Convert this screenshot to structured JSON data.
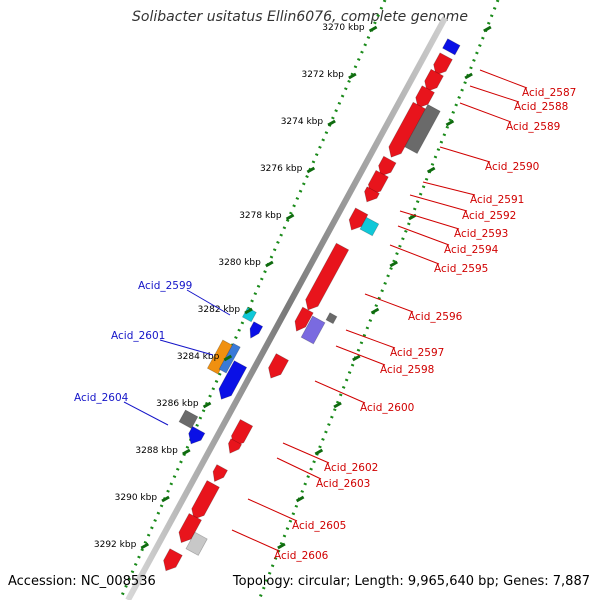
{
  "title": "Solibacter usitatus Ellin6076, complete genome",
  "accession": "Accession: NC_008536",
  "summary": "Topology: circular; Length: 9,965,640 bp; Genes: 7,887",
  "colors": {
    "forward_gene": "#e8141c",
    "forward_gene_dark": "#a00000",
    "reverse_gene": "#0a10e6",
    "backbone": "#8a8a8a",
    "gc_dots": "#1a8a1a",
    "gc_ticks": "#0f6b0f",
    "label_forward": "#d00000",
    "label_reverse": "#1414c8",
    "cyan_gene": "#10c8d8",
    "grey_gene": "#6a6a6a",
    "orange_gene": "#f09010",
    "purple_gene": "#7a6ae0"
  },
  "scale": {
    "unit": "kbp",
    "ticks": [
      {
        "label": "3270 kbp",
        "kbp": 3270
      },
      {
        "label": "3272 kbp",
        "kbp": 3272
      },
      {
        "label": "3274 kbp",
        "kbp": 3274
      },
      {
        "label": "3276 kbp",
        "kbp": 3276
      },
      {
        "label": "3278 kbp",
        "kbp": 3278
      },
      {
        "label": "3280 kbp",
        "kbp": 3280
      },
      {
        "label": "3282 kbp",
        "kbp": 3282
      },
      {
        "label": "3284 kbp",
        "kbp": 3284
      },
      {
        "label": "3286 kbp",
        "kbp": 3286
      },
      {
        "label": "3288 kbp",
        "kbp": 3288
      },
      {
        "label": "3290 kbp",
        "kbp": 3290
      },
      {
        "label": "3292 kbp",
        "kbp": 3292
      }
    ]
  },
  "gene_labels_forward": [
    {
      "label": "Acid_2587",
      "kbp": 3271.4
    },
    {
      "label": "Acid_2588",
      "kbp": 3272.2
    },
    {
      "label": "Acid_2589",
      "kbp": 3273.1
    },
    {
      "label": "Acid_2590",
      "kbp": 3274.9
    },
    {
      "label": "Acid_2591",
      "kbp": 3276.3
    },
    {
      "label": "Acid_2592",
      "kbp": 3277.0
    },
    {
      "label": "Acid_2593",
      "kbp": 3277.6
    },
    {
      "label": "Acid_2594",
      "kbp": 3278.3
    },
    {
      "label": "Acid_2595",
      "kbp": 3279.0
    },
    {
      "label": "Acid_2596",
      "kbp": 3281.1
    },
    {
      "label": "Acid_2597",
      "kbp": 3282.3
    },
    {
      "label": "Acid_2598",
      "kbp": 3283.2
    },
    {
      "label": "Acid_2600",
      "kbp": 3284.9
    },
    {
      "label": "Acid_2602",
      "kbp": 3287.3
    },
    {
      "label": "Acid_2603",
      "kbp": 3287.8
    },
    {
      "label": "Acid_2605",
      "kbp": 3290.1
    },
    {
      "label": "Acid_2606",
      "kbp": 3291.3
    }
  ],
  "gene_labels_reverse": [
    {
      "label": "Acid_2599",
      "kbp": 3282.0
    },
    {
      "label": "Acid_2601",
      "kbp": 3283.4
    },
    {
      "label": "Acid_2604",
      "kbp": 3285.8
    }
  ]
}
